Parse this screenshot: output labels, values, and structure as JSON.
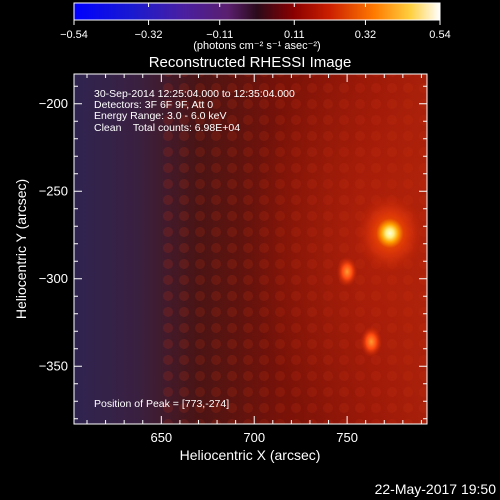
{
  "chart_data": {
    "type": "heatmap",
    "title": "Reconstructed RHESSI Image",
    "xlabel": "Heliocentric X (arcsec)",
    "ylabel": "Heliocentric Y (arcsec)",
    "xlim": [
      603,
      793
    ],
    "ylim": [
      -383,
      -183
    ],
    "x_ticks": [
      650,
      700,
      750
    ],
    "y_ticks": [
      -200,
      -250,
      -300,
      -350
    ],
    "colorbar": {
      "label": "(photons cm⁻² s⁻¹ asec⁻²)",
      "range": [
        -0.54,
        0.54
      ],
      "ticks": [
        "−0.54",
        "−0.32",
        "−0.11",
        "0.11",
        "0.32",
        "0.54"
      ],
      "tick_values": [
        -0.54,
        -0.32,
        -0.11,
        0.11,
        0.32,
        0.54
      ]
    },
    "annotations": [
      "30-Sep-2014 12:25:04.000 to 12:35:04.000",
      "Detectors: 3F 6F 9F, Att 0",
      "Energy Range: 3.0 - 6.0 keV",
      "Clean    Total counts: 6.98E+04"
    ],
    "peak_label": "Position of Peak = [773,-274]",
    "sources": [
      {
        "x": 773,
        "y": -274,
        "amplitude": 0.54
      },
      {
        "x": 763,
        "y": -336,
        "amplitude": 0.38
      },
      {
        "x": 750,
        "y": -296,
        "amplitude": 0.33
      }
    ]
  },
  "footer_timestamp": "22-May-2017 19:50",
  "colors": {
    "background": "#000000",
    "text": "#ffffff",
    "map_low": "#3c2f5a",
    "map_mid": "#aa1a06",
    "map_high": "#ffffd0"
  }
}
